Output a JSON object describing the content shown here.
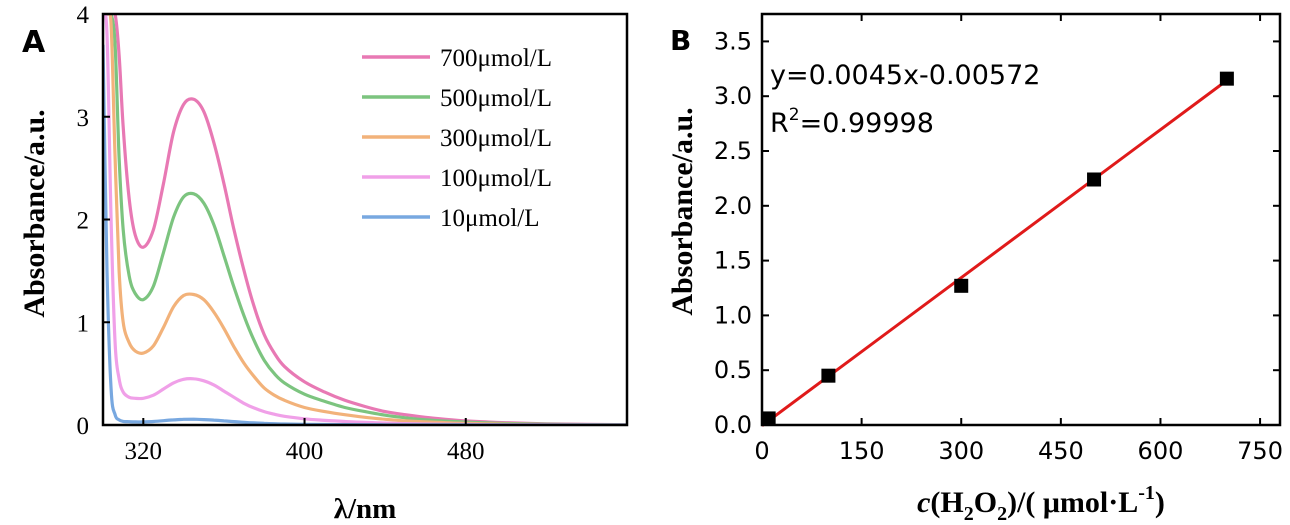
{
  "panels": {
    "a_label": "A",
    "b_label": "B"
  },
  "chart_data": [
    {
      "type": "line",
      "panel": "A",
      "title": "",
      "xlabel": "λ/nm",
      "ylabel": "Absorbance/a.u.",
      "xlim": [
        300,
        560
      ],
      "ylim": [
        0,
        4
      ],
      "x_ticks": [
        320,
        400,
        480
      ],
      "y_ticks": [
        0,
        1,
        2,
        3,
        4
      ],
      "grid": false,
      "legend_position": "top-right",
      "x": [
        300,
        302,
        304,
        306,
        308,
        310,
        313,
        316,
        320,
        325,
        330,
        335,
        340,
        345,
        350,
        355,
        360,
        365,
        370,
        375,
        380,
        385,
        390,
        400,
        410,
        420,
        430,
        440,
        450,
        460,
        470,
        480,
        490,
        500,
        520,
        540,
        560
      ],
      "series": [
        {
          "name": "700μmol/L",
          "color": "#e879b4",
          "values": [
            4.0,
            4.0,
            4.0,
            4.0,
            3.6,
            2.9,
            2.2,
            1.85,
            1.73,
            1.9,
            2.35,
            2.85,
            3.12,
            3.17,
            3.05,
            2.75,
            2.35,
            1.9,
            1.5,
            1.15,
            0.88,
            0.7,
            0.57,
            0.42,
            0.32,
            0.24,
            0.18,
            0.13,
            0.1,
            0.075,
            0.055,
            0.04,
            0.03,
            0.022,
            0.012,
            0.006,
            0.003
          ]
        },
        {
          "name": "500μmol/L",
          "color": "#7cc47f",
          "values": [
            4.0,
            4.0,
            4.0,
            3.7,
            2.6,
            1.9,
            1.45,
            1.28,
            1.22,
            1.35,
            1.68,
            2.02,
            2.22,
            2.25,
            2.16,
            1.95,
            1.65,
            1.34,
            1.06,
            0.82,
            0.63,
            0.5,
            0.41,
            0.3,
            0.23,
            0.17,
            0.13,
            0.095,
            0.07,
            0.05,
            0.038,
            0.028,
            0.02,
            0.015,
            0.008,
            0.004,
            0.002
          ]
        },
        {
          "name": "300μmol/L",
          "color": "#f2b27a",
          "values": [
            4.0,
            4.0,
            3.9,
            2.6,
            1.5,
            1.0,
            0.8,
            0.72,
            0.7,
            0.77,
            0.95,
            1.15,
            1.26,
            1.27,
            1.22,
            1.1,
            0.94,
            0.76,
            0.6,
            0.47,
            0.36,
            0.29,
            0.24,
            0.17,
            0.13,
            0.1,
            0.075,
            0.055,
            0.04,
            0.03,
            0.022,
            0.016,
            0.012,
            0.008,
            0.004,
            0.002,
            0.001
          ]
        },
        {
          "name": "100μmol/L",
          "color": "#f0a0e8",
          "values": [
            4.0,
            3.8,
            2.0,
            0.8,
            0.45,
            0.32,
            0.27,
            0.26,
            0.26,
            0.29,
            0.35,
            0.41,
            0.445,
            0.45,
            0.43,
            0.39,
            0.33,
            0.27,
            0.21,
            0.165,
            0.13,
            0.105,
            0.085,
            0.06,
            0.045,
            0.034,
            0.026,
            0.019,
            0.014,
            0.01,
            0.008,
            0.006,
            0.004,
            0.003,
            0.002,
            0.001,
            0.0
          ]
        },
        {
          "name": "10μmol/L",
          "color": "#78a8e0",
          "values": [
            3.7,
            1.5,
            0.35,
            0.1,
            0.05,
            0.035,
            0.032,
            0.03,
            0.03,
            0.034,
            0.042,
            0.05,
            0.055,
            0.056,
            0.053,
            0.048,
            0.04,
            0.033,
            0.026,
            0.02,
            0.016,
            0.013,
            0.01,
            0.007,
            0.005,
            0.004,
            0.003,
            0.002,
            0.0015,
            0.001,
            0.0008,
            0.0006,
            0.0004,
            0.0003,
            0.0002,
            0.0001,
            0.0
          ]
        }
      ]
    },
    {
      "type": "scatter",
      "panel": "B",
      "title": "",
      "xlabel": "c(H2O2)/( μmol·L-1)",
      "xlabel_parts": {
        "c": "c",
        "open": "(H",
        "sub1": "2",
        "mid": "O",
        "sub2": "2",
        "close": ")/( μmol·L",
        "sup": "-1",
        "end": ")"
      },
      "ylabel": "Absorbance/a.u.",
      "xlim": [
        0,
        780
      ],
      "ylim": [
        0,
        3.75
      ],
      "x_ticks": [
        0,
        150,
        300,
        450,
        600,
        750
      ],
      "y_ticks": [
        0.0,
        0.5,
        1.0,
        1.5,
        2.0,
        2.5,
        3.0,
        3.5
      ],
      "grid": false,
      "points": {
        "x": [
          10,
          100,
          300,
          500,
          700
        ],
        "y": [
          0.06,
          0.45,
          1.27,
          2.24,
          3.16
        ],
        "color": "#000000"
      },
      "fit": {
        "equation": "y=0.0045x-0.00572",
        "r2_prefix": "R",
        "r2_sup": "2",
        "r2_value": "=0.99998",
        "slope": 0.0045,
        "intercept": -0.00572,
        "x_range": [
          0,
          700
        ],
        "color": "#e01a1a"
      }
    }
  ]
}
